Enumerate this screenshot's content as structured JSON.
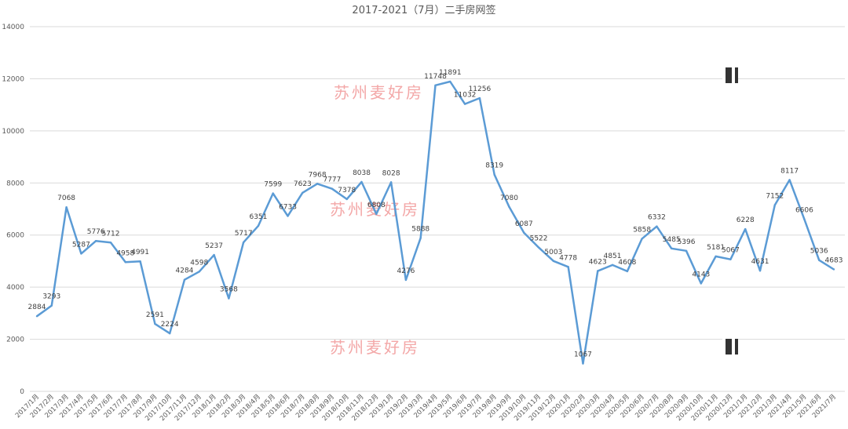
{
  "chart_data": {
    "type": "line",
    "title": "2017-2021（7月）二手房网签",
    "xlabel": "",
    "ylabel": "",
    "ylim": [
      0,
      14000
    ],
    "yticks": [
      0,
      2000,
      4000,
      6000,
      8000,
      10000,
      12000,
      14000
    ],
    "grid": true,
    "legend": "none",
    "line_color": "#5b9bd5",
    "categories": [
      "2017/1月",
      "2017/2月",
      "2017/3月",
      "2017/4月",
      "2017/5月",
      "2017/6月",
      "2017/7月",
      "2017/8月",
      "2017/9月",
      "2017/10月",
      "2017/11月",
      "2017/12月",
      "2018/1月",
      "2018/2月",
      "2018/3月",
      "2018/4月",
      "2018/5月",
      "2018/6月",
      "2018/7月",
      "2018/8月",
      "2018/9月",
      "2018/10月",
      "2018/11月",
      "2018/12月",
      "2019/1月",
      "2019/2月",
      "2019/3月",
      "2019/4月",
      "2019/5月",
      "2019/6月",
      "2019/7月",
      "2019/8月",
      "2019/9月",
      "2019/10月",
      "2019/11月",
      "2019/12月",
      "2020/1月",
      "2020/2月",
      "2020/3月",
      "2020/4月",
      "2020/5月",
      "2020/6月",
      "2020/7月",
      "2020/8月",
      "2020/9月",
      "2020/10月",
      "2020/11月",
      "2020/12月",
      "2021/1月",
      "2021/2月",
      "2021/3月",
      "2021/4月",
      "2021/5月",
      "2021/6月",
      "2021/7月"
    ],
    "values": [
      2884,
      3293,
      7068,
      5287,
      5776,
      5712,
      4958,
      4991,
      2591,
      2224,
      4284,
      4598,
      5237,
      3568,
      5717,
      6351,
      7599,
      6733,
      7623,
      7968,
      7777,
      7378,
      8038,
      6808,
      8028,
      4276,
      5888,
      11748,
      11891,
      11032,
      11256,
      8319,
      7080,
      6087,
      5522,
      5003,
      4778,
      1067,
      4623,
      4851,
      4608,
      5858,
      6332,
      5485,
      5396,
      4143,
      5181,
      5067,
      6228,
      4631,
      7152,
      8117,
      6606,
      5036,
      4683
    ]
  },
  "watermark": {
    "text": "苏州麦好房",
    "color": "#f08a8a"
  }
}
